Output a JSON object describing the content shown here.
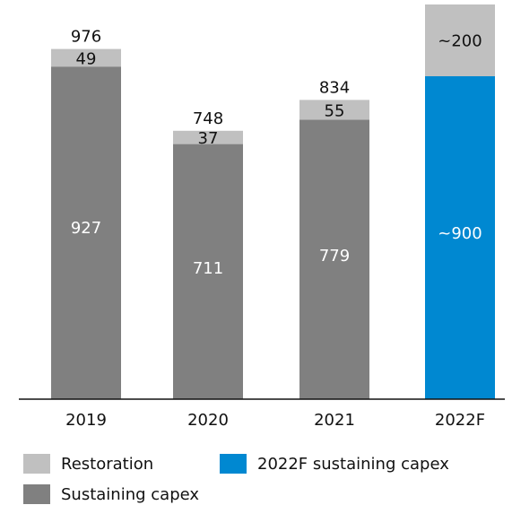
{
  "chart_data": {
    "type": "bar",
    "stacked": true,
    "categories": [
      "2019",
      "2020",
      "2021",
      "2022F"
    ],
    "series": [
      {
        "name": "Sustaining capex",
        "values": [
          927,
          711,
          779,
          null
        ],
        "labels": [
          "927",
          "711",
          "779",
          ""
        ],
        "color": "#808080"
      },
      {
        "name": "2022F sustaining capex",
        "values": [
          null,
          null,
          null,
          900
        ],
        "labels": [
          "",
          "",
          "",
          "~900"
        ],
        "color": "#0088d1"
      },
      {
        "name": "Restoration",
        "values": [
          49,
          37,
          55,
          200
        ],
        "labels": [
          "49",
          "37",
          "55",
          "~200"
        ],
        "color": "#c0c0c0"
      }
    ],
    "totals": [
      "976",
      "748",
      "834",
      ""
    ],
    "ylim": [
      0,
      1100
    ],
    "legend": [
      {
        "label": "Restoration",
        "color": "#c0c0c0"
      },
      {
        "label": "2022F sustaining capex",
        "color": "#0088d1"
      },
      {
        "label": "Sustaining capex",
        "color": "#808080"
      }
    ]
  }
}
